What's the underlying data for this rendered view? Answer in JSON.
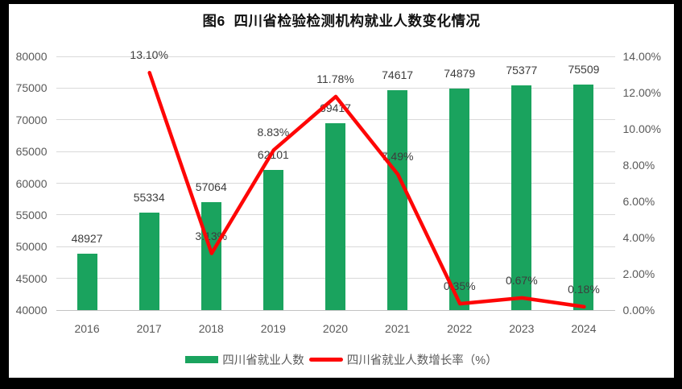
{
  "chart_data": {
    "type": "bar",
    "combo_note": "bar series on left axis with overlaid line series on right axis",
    "title": "图6  四川省检验检测机构就业人数变化情况",
    "categories": [
      "2016",
      "2017",
      "2018",
      "2019",
      "2020",
      "2021",
      "2022",
      "2023",
      "2024"
    ],
    "series": [
      {
        "name": "四川省就业人数",
        "chart_type": "bar",
        "axis": "left",
        "color": "#1aa35e",
        "values": [
          48927,
          55334,
          57064,
          62101,
          69417,
          74617,
          74879,
          75377,
          75509
        ],
        "data_labels": [
          "48927",
          "55334",
          "57064",
          "62101",
          "69417",
          "74617",
          "74879",
          "75377",
          "75509"
        ]
      },
      {
        "name": "四川省就业人数增长率（%）",
        "chart_type": "line",
        "axis": "right",
        "color": "#fe0606",
        "values": [
          null,
          13.1,
          3.13,
          8.83,
          11.78,
          7.49,
          0.35,
          0.67,
          0.18
        ],
        "data_labels": [
          "",
          "13.10%",
          "3.13%",
          "8.83%",
          "11.78%",
          "7.49%",
          "0.35%",
          "0.67%",
          "0.18%"
        ]
      }
    ],
    "left_axis": {
      "min": 40000,
      "max": 80000,
      "step": 5000,
      "tick_labels": [
        "40000",
        "45000",
        "50000",
        "55000",
        "60000",
        "65000",
        "70000",
        "75000",
        "80000"
      ]
    },
    "right_axis": {
      "min": 0,
      "max": 14,
      "step": 2,
      "format": "percent",
      "tick_labels": [
        "0.00%",
        "2.00%",
        "4.00%",
        "6.00%",
        "8.00%",
        "10.00%",
        "12.00%",
        "14.00%"
      ]
    },
    "grid": true,
    "legend_position": "bottom"
  },
  "colors": {
    "frame": "#000000",
    "background": "#ffffff",
    "grid": "#d9d9d9",
    "axis_line": "#c3c3c3",
    "tick_text": "#595959",
    "data_label_text": "#3d3d3d",
    "title_text": "#111111"
  }
}
